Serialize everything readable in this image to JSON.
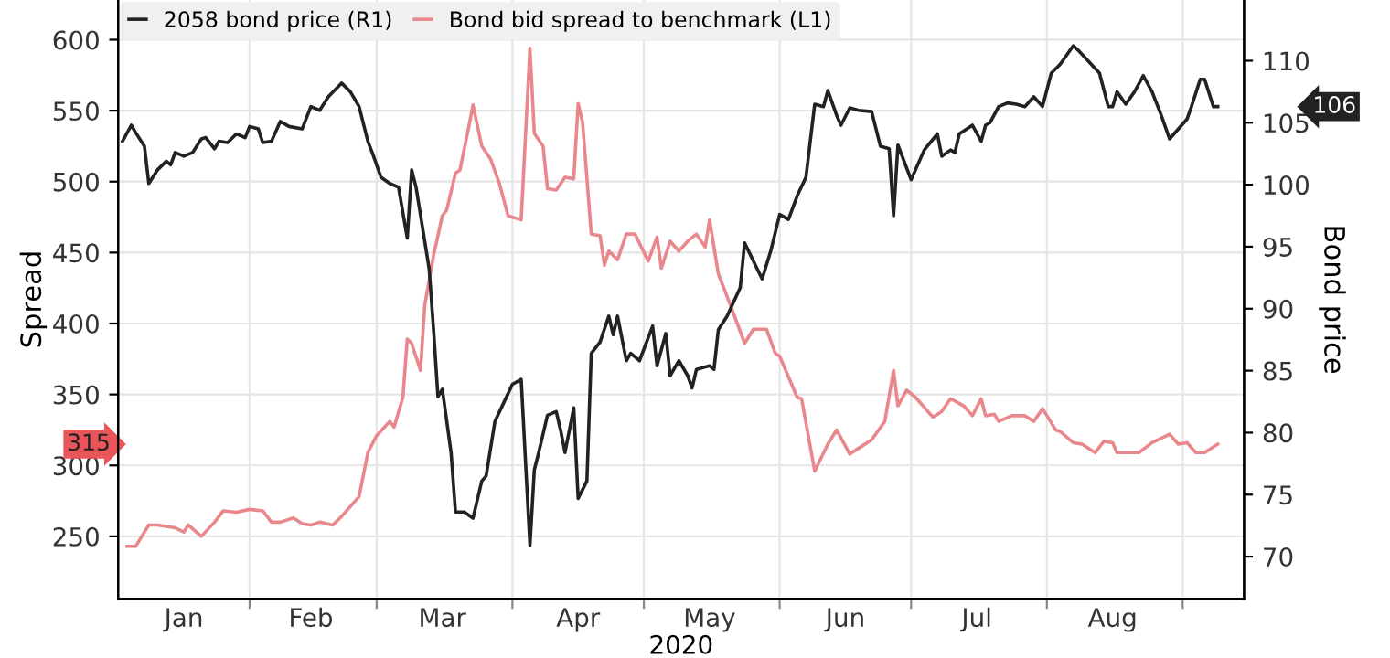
{
  "chart_data": {
    "type": "line",
    "xlabel": "2020",
    "ylabel": "Spread",
    "y2label": "Bond price",
    "xlim": [
      "2020-01-02",
      "2020-09-15"
    ],
    "ylim": [
      206,
      628
    ],
    "yticks": [
      250,
      300,
      350,
      400,
      450,
      500,
      550,
      600
    ],
    "y2lim": [
      66.6,
      114.9
    ],
    "y2ticks": [
      70,
      75,
      80,
      85,
      90,
      95,
      100,
      105,
      110
    ],
    "xticks": [
      {
        "value": "2020-02-01",
        "label": null
      },
      {
        "value": "2020-03-01",
        "label": null
      },
      {
        "value": "2020-04-01",
        "label": null
      },
      {
        "value": "2020-05-01",
        "label": null
      },
      {
        "value": "2020-06-01",
        "label": null
      },
      {
        "value": "2020-07-01",
        "label": null
      },
      {
        "value": "2020-08-01",
        "label": null
      },
      {
        "value": "2020-09-01",
        "label": null
      },
      {
        "value": "2020-01-17",
        "label": "Jan"
      },
      {
        "value": "2020-02-15",
        "label": "Feb"
      },
      {
        "value": "2020-03-16",
        "label": "Mar"
      },
      {
        "value": "2020-04-16",
        "label": "Apr"
      },
      {
        "value": "2020-05-16",
        "label": "May"
      },
      {
        "value": "2020-06-16",
        "label": "Jun"
      },
      {
        "value": "2020-07-16",
        "label": "Jul"
      },
      {
        "value": "2020-08-16",
        "label": "Aug"
      }
    ],
    "grid": true,
    "legend": "top left",
    "marker": "none",
    "line_style": "solid",
    "annotations": [
      "106",
      "315"
    ],
    "series": [
      {
        "name": "2058 bond price (R1)",
        "color": "#222222",
        "axis": "y2",
        "x": [
          "2020-01-03",
          "2020-01-05",
          "2020-01-06",
          "2020-01-08",
          "2020-01-09",
          "2020-01-11",
          "2020-01-13",
          "2020-01-14",
          "2020-01-15",
          "2020-01-17",
          "2020-01-19",
          "2020-01-21",
          "2020-01-22",
          "2020-01-24",
          "2020-01-25",
          "2020-01-27",
          "2020-01-29",
          "2020-01-31",
          "2020-02-01",
          "2020-02-03",
          "2020-02-04",
          "2020-02-06",
          "2020-02-08",
          "2020-02-10",
          "2020-02-13",
          "2020-02-15",
          "2020-02-17",
          "2020-02-19",
          "2020-02-22",
          "2020-02-24",
          "2020-02-26",
          "2020-02-28",
          "2020-02-29",
          "2020-03-02",
          "2020-03-04",
          "2020-03-06",
          "2020-03-08",
          "2020-03-09",
          "2020-03-10",
          "2020-03-13",
          "2020-03-14",
          "2020-03-15",
          "2020-03-16",
          "2020-03-18",
          "2020-03-19",
          "2020-03-21",
          "2020-03-23",
          "2020-03-25",
          "2020-03-26",
          "2020-03-28",
          "2020-03-30",
          "2020-04-01",
          "2020-04-03",
          "2020-04-05",
          "2020-04-06",
          "2020-04-07",
          "2020-04-09",
          "2020-04-11",
          "2020-04-12",
          "2020-04-13",
          "2020-04-15",
          "2020-04-16",
          "2020-04-18",
          "2020-04-19",
          "2020-04-21",
          "2020-04-23",
          "2020-04-24",
          "2020-04-25",
          "2020-04-27",
          "2020-04-28",
          "2020-04-30",
          "2020-05-03",
          "2020-05-04",
          "2020-05-06",
          "2020-05-07",
          "2020-05-09",
          "2020-05-11",
          "2020-05-12",
          "2020-05-13",
          "2020-05-16",
          "2020-05-17",
          "2020-05-18",
          "2020-05-20",
          "2020-05-23",
          "2020-05-24",
          "2020-05-28",
          "2020-05-30",
          "2020-06-01",
          "2020-06-03",
          "2020-06-05",
          "2020-06-07",
          "2020-06-09",
          "2020-06-11",
          "2020-06-12",
          "2020-06-14",
          "2020-06-15",
          "2020-06-17",
          "2020-06-19",
          "2020-06-22",
          "2020-06-24",
          "2020-06-26",
          "2020-06-27",
          "2020-06-28",
          "2020-07-01",
          "2020-07-04",
          "2020-07-07",
          "2020-07-08",
          "2020-07-10",
          "2020-07-11",
          "2020-07-12",
          "2020-07-15",
          "2020-07-17",
          "2020-07-18",
          "2020-07-19",
          "2020-07-21",
          "2020-07-23",
          "2020-07-25",
          "2020-07-27",
          "2020-07-29",
          "2020-07-31",
          "2020-08-02",
          "2020-08-04",
          "2020-08-07",
          "2020-08-08",
          "2020-08-13",
          "2020-08-15",
          "2020-08-16",
          "2020-08-17",
          "2020-08-19",
          "2020-08-21",
          "2020-08-23",
          "2020-08-25",
          "2020-08-27",
          "2020-08-29",
          "2020-09-02",
          "2020-09-03",
          "2020-09-05",
          "2020-09-06",
          "2020-09-08",
          "2020-09-09"
        ],
        "values": [
          103.5,
          104.8,
          104.2,
          103.1,
          100.1,
          101.2,
          101.9,
          101.6,
          102.6,
          102.3,
          102.6,
          103.7,
          103.8,
          102.9,
          103.5,
          103.4,
          104.1,
          103.8,
          104.7,
          104.5,
          103.4,
          103.5,
          105.1,
          104.7,
          104.5,
          106.3,
          106.0,
          107.1,
          108.2,
          107.5,
          106.3,
          103.5,
          102.6,
          100.6,
          100.1,
          99.8,
          95.7,
          101.2,
          99.8,
          93.2,
          88.3,
          82.9,
          83.5,
          78.4,
          73.6,
          73.6,
          73.1,
          76.1,
          76.5,
          80.9,
          82.4,
          83.9,
          84.3,
          70.9,
          77.0,
          78.4,
          81.4,
          81.7,
          80.2,
          78.4,
          82.0,
          74.7,
          76.1,
          86.4,
          87.3,
          89.4,
          87.9,
          89.4,
          85.8,
          86.4,
          85.8,
          88.6,
          85.4,
          88.0,
          84.6,
          85.8,
          84.6,
          83.6,
          85.1,
          85.4,
          85.1,
          88.3,
          89.4,
          91.7,
          95.3,
          92.4,
          94.7,
          97.6,
          97.2,
          99.1,
          100.6,
          106.5,
          106.3,
          107.6,
          105.6,
          104.8,
          106.2,
          106.0,
          105.9,
          103.1,
          102.9,
          97.5,
          103.2,
          100.4,
          102.8,
          104.1,
          102.3,
          102.8,
          102.6,
          104.1,
          104.8,
          103.5,
          104.8,
          105.0,
          106.3,
          106.6,
          106.5,
          106.3,
          107.1,
          106.3,
          109.0,
          109.7,
          111.2,
          110.9,
          109.0,
          106.3,
          106.3,
          107.5,
          106.5,
          107.5,
          108.8,
          107.5,
          105.7,
          103.7,
          105.3,
          106.3,
          108.5,
          108.5,
          106.3,
          106.3
        ]
      },
      {
        "name": "Bond bid spread to benchmark (L1)",
        "color": "#e8888c",
        "axis": "y",
        "x": [
          "2020-01-04",
          "2020-01-06",
          "2020-01-09",
          "2020-01-11",
          "2020-01-15",
          "2020-01-17",
          "2020-01-18",
          "2020-01-21",
          "2020-01-24",
          "2020-01-26",
          "2020-01-29",
          "2020-02-01",
          "2020-02-04",
          "2020-02-06",
          "2020-02-08",
          "2020-02-11",
          "2020-02-13",
          "2020-02-15",
          "2020-02-17",
          "2020-02-20",
          "2020-02-22",
          "2020-02-26",
          "2020-02-28",
          "2020-03-01",
          "2020-03-04",
          "2020-03-05",
          "2020-03-07",
          "2020-03-08",
          "2020-03-09",
          "2020-03-11",
          "2020-03-12",
          "2020-03-14",
          "2020-03-16",
          "2020-03-17",
          "2020-03-19",
          "2020-03-20",
          "2020-03-22",
          "2020-03-23",
          "2020-03-25",
          "2020-03-27",
          "2020-03-29",
          "2020-03-31",
          "2020-04-03",
          "2020-04-05",
          "2020-04-06",
          "2020-04-08",
          "2020-04-09",
          "2020-04-11",
          "2020-04-13",
          "2020-04-15",
          "2020-04-16",
          "2020-04-17",
          "2020-04-19",
          "2020-04-21",
          "2020-04-22",
          "2020-04-23",
          "2020-04-25",
          "2020-04-27",
          "2020-04-29",
          "2020-05-02",
          "2020-05-04",
          "2020-05-05",
          "2020-05-07",
          "2020-05-09",
          "2020-05-11",
          "2020-05-13",
          "2020-05-15",
          "2020-05-16",
          "2020-05-18",
          "2020-05-21",
          "2020-05-24",
          "2020-05-26",
          "2020-05-29",
          "2020-05-31",
          "2020-06-01",
          "2020-06-05",
          "2020-06-06",
          "2020-06-09",
          "2020-06-12",
          "2020-06-14",
          "2020-06-17",
          "2020-06-19",
          "2020-06-22",
          "2020-06-25",
          "2020-06-27",
          "2020-06-28",
          "2020-06-30",
          "2020-07-02",
          "2020-07-06",
          "2020-07-08",
          "2020-07-10",
          "2020-07-13",
          "2020-07-15",
          "2020-07-17",
          "2020-07-18",
          "2020-07-20",
          "2020-07-21",
          "2020-07-24",
          "2020-07-27",
          "2020-07-29",
          "2020-07-31",
          "2020-08-01",
          "2020-08-03",
          "2020-08-04",
          "2020-08-07",
          "2020-08-09",
          "2020-08-12",
          "2020-08-14",
          "2020-08-16",
          "2020-08-17",
          "2020-08-22",
          "2020-08-25",
          "2020-08-29",
          "2020-08-31",
          "2020-09-02",
          "2020-09-04",
          "2020-09-06",
          "2020-09-09"
        ],
        "values": [
          243,
          243,
          258,
          258,
          256,
          253,
          258,
          250,
          260,
          268,
          267,
          269,
          268,
          260,
          260,
          263,
          259,
          258,
          260,
          258,
          264,
          278,
          309,
          321,
          331,
          327,
          348,
          389,
          386,
          367,
          413,
          448,
          476,
          480,
          506,
          508,
          538,
          554,
          525,
          516,
          499,
          476,
          473,
          594,
          534,
          525,
          495,
          494,
          503,
          502,
          555,
          542,
          463,
          462,
          441,
          451,
          445,
          463,
          463,
          444,
          461,
          439,
          458,
          451,
          458,
          463,
          454,
          473,
          435,
          411,
          386,
          396,
          396,
          379,
          377,
          348,
          347,
          296,
          315,
          325,
          308,
          312,
          318,
          331,
          367,
          342,
          353,
          348,
          334,
          338,
          347,
          342,
          335,
          347,
          335,
          336,
          331,
          335,
          335,
          331,
          340,
          335,
          325,
          324,
          316,
          315,
          309,
          317,
          316,
          309,
          309,
          316,
          322,
          315,
          316,
          309,
          309,
          315
        ]
      }
    ]
  }
}
